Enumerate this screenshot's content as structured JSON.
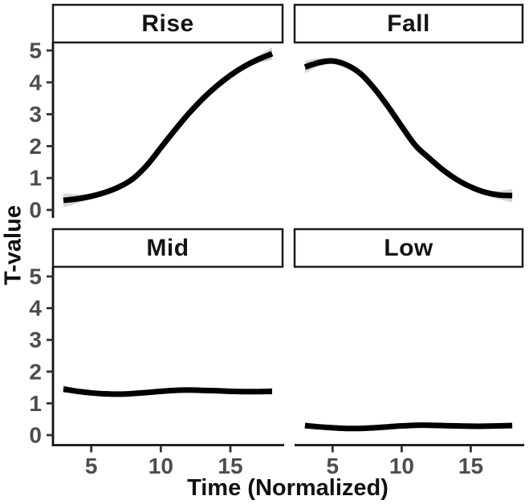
{
  "figure": {
    "kind": "faceted smooth line chart (2x2 facets)",
    "background": "#ffffff"
  },
  "chart_data": {
    "type": "line",
    "title": "",
    "xlabel": "Time (Normalized)",
    "ylabel": "T-value",
    "facet_layout": "2x2",
    "legend": "none",
    "grid": "off",
    "xlim": [
      2.25,
      18.75
    ],
    "ylim": [
      -0.3,
      5.3
    ],
    "x_ticks": [
      5,
      10,
      15
    ],
    "y_ticks": [
      0,
      1,
      2,
      3,
      4,
      5
    ],
    "x": [
      3,
      4,
      5,
      6,
      7,
      8,
      9,
      10,
      11,
      12,
      13,
      14,
      15,
      16,
      17,
      18
    ],
    "panels": [
      {
        "title": "Rise",
        "values": [
          0.3,
          0.35,
          0.43,
          0.55,
          0.72,
          0.98,
          1.4,
          1.95,
          2.5,
          3.02,
          3.48,
          3.88,
          4.22,
          4.5,
          4.72,
          4.9
        ],
        "ci": [
          0.22,
          0.14,
          0.09,
          0.07,
          0.06,
          0.06,
          0.06,
          0.06,
          0.06,
          0.06,
          0.06,
          0.06,
          0.07,
          0.08,
          0.12,
          0.2
        ]
      },
      {
        "title": "Fall",
        "values": [
          4.48,
          4.62,
          4.67,
          4.55,
          4.28,
          3.82,
          3.25,
          2.62,
          2.02,
          1.62,
          1.25,
          0.95,
          0.72,
          0.56,
          0.47,
          0.45
        ],
        "ci": [
          0.2,
          0.13,
          0.09,
          0.07,
          0.06,
          0.06,
          0.06,
          0.06,
          0.06,
          0.06,
          0.06,
          0.06,
          0.07,
          0.08,
          0.13,
          0.21
        ]
      },
      {
        "title": "Mid",
        "values": [
          1.45,
          1.38,
          1.33,
          1.3,
          1.29,
          1.31,
          1.34,
          1.38,
          1.41,
          1.42,
          1.41,
          1.4,
          1.38,
          1.37,
          1.37,
          1.38
        ],
        "ci": [
          0.12,
          0.08,
          0.06,
          0.05,
          0.05,
          0.05,
          0.05,
          0.05,
          0.05,
          0.05,
          0.05,
          0.05,
          0.05,
          0.05,
          0.07,
          0.11
        ]
      },
      {
        "title": "Low",
        "values": [
          0.3,
          0.26,
          0.23,
          0.21,
          0.21,
          0.23,
          0.26,
          0.29,
          0.31,
          0.31,
          0.3,
          0.29,
          0.28,
          0.28,
          0.29,
          0.3
        ],
        "ci": [
          0.1,
          0.07,
          0.05,
          0.04,
          0.04,
          0.04,
          0.04,
          0.04,
          0.04,
          0.04,
          0.04,
          0.04,
          0.04,
          0.05,
          0.06,
          0.09
        ]
      }
    ],
    "styles": {
      "line_color": "#000000",
      "ribbon_color": "#d6d6d6",
      "axis_text_color": "#4d4d4d",
      "axis_line_color": "#111111",
      "tick_color": "#333333",
      "strip_border_color": "#1a1a1a",
      "strip_fill": "#ffffff"
    }
  }
}
